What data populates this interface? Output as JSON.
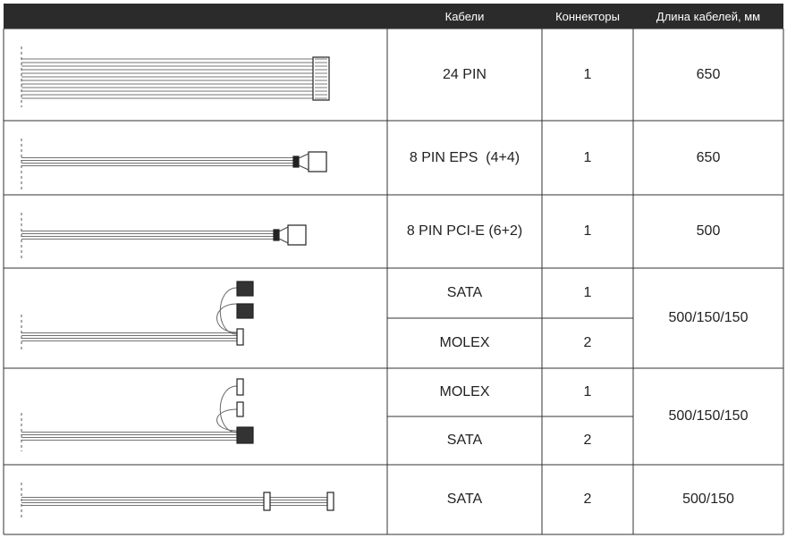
{
  "header": [
    "Кабели",
    "Коннекторы",
    "Длина кабелей, мм"
  ],
  "rows": [
    {
      "cables": [
        {
          "name": "24 PIN",
          "count": 1
        }
      ],
      "length": "650"
    },
    {
      "cables": [
        {
          "name": "8 PIN EPS  (4+4)",
          "count": 1
        }
      ],
      "length": "650"
    },
    {
      "cables": [
        {
          "name": "8 PIN PCI-E (6+2)",
          "count": 1
        }
      ],
      "length": "500"
    },
    {
      "cables": [
        {
          "name": "SATA",
          "count": 1
        },
        {
          "name": "MOLEX",
          "count": 2
        }
      ],
      "length": "500/150/150"
    },
    {
      "cables": [
        {
          "name": "MOLEX",
          "count": 1
        },
        {
          "name": "SATA",
          "count": 2
        }
      ],
      "length": "500/150/150"
    },
    {
      "cables": [
        {
          "name": "SATA",
          "count": 2
        }
      ],
      "length": "500/150"
    }
  ]
}
